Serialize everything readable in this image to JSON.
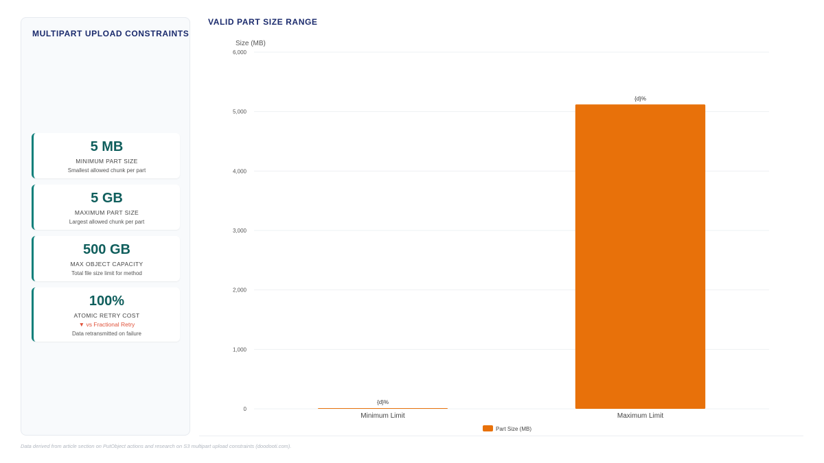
{
  "sidebar": {
    "title": "MULTIPART UPLOAD CONSTRAINTS",
    "kpis": [
      {
        "value": "5 MB",
        "label": "MINIMUM PART SIZE",
        "sub": "Smallest allowed chunk per part"
      },
      {
        "value": "5 GB",
        "label": "MAXIMUM PART SIZE",
        "sub": "Largest allowed chunk per part"
      },
      {
        "value": "500 GB",
        "label": "MAX OBJECT CAPACITY",
        "sub": "Total file size limit for method"
      },
      {
        "value": "100%",
        "label": "ATOMIC RETRY COST",
        "trend": "▼ vs Fractional Retry",
        "sub": "Data retransmitted on failure"
      }
    ]
  },
  "chart_title": "VALID PART SIZE RANGE",
  "chart_data": {
    "type": "bar",
    "title": "VALID PART SIZE RANGE",
    "ylabel": "Size (MB)",
    "xlabel": "",
    "ylim": [
      0,
      6000
    ],
    "yticks": [
      0,
      1000,
      2000,
      3000,
      4000,
      5000,
      6000
    ],
    "ytick_labels": [
      "0",
      "1,000",
      "2,000",
      "3,000",
      "4,000",
      "5,000",
      "6,000"
    ],
    "categories": [
      "Minimum Limit",
      "Maximum Limit"
    ],
    "series": [
      {
        "name": "Part Size (MB)",
        "values": [
          5,
          5120
        ],
        "color": "#e8710a"
      }
    ],
    "data_labels": [
      "{d}%",
      "{d}%"
    ],
    "grid": true,
    "legend": "bottom-center"
  },
  "footnote": "Data derived from article section on PutObject actions and research on S3 multipart upload constraints (doodooti.com)."
}
